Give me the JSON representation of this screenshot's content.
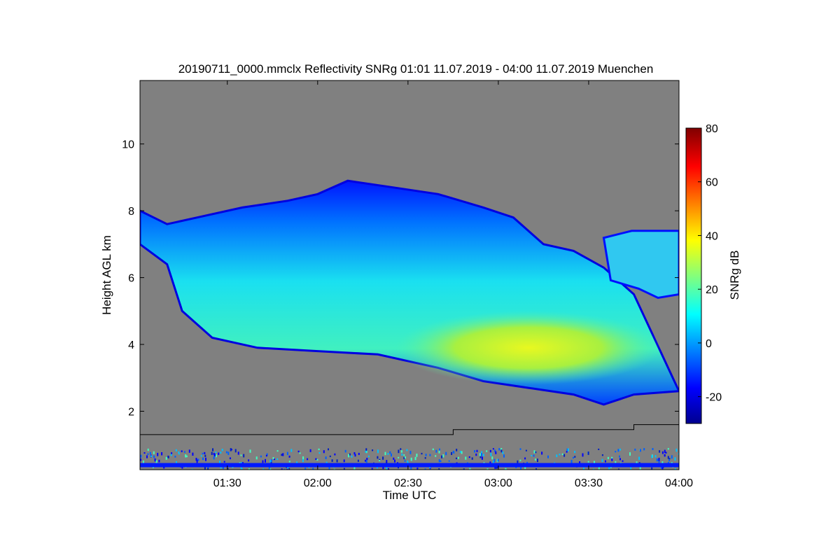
{
  "chart_data": {
    "type": "heatmap",
    "title": "20190711_0000.mmclx Reflectivity SNRg   01:01 11.07.2019 - 04:00 11.07.2019 Muenchen",
    "xlabel": "Time UTC",
    "ylabel": "Height AGL km",
    "colorbar_label": "SNRg dB",
    "x_range": [
      "01:01",
      "04:00"
    ],
    "x_ticks": [
      "01:30",
      "02:00",
      "02:30",
      "03:00",
      "03:30",
      "04:00"
    ],
    "ylim": [
      0.25,
      11.9
    ],
    "y_ticks": [
      2,
      4,
      6,
      8,
      10
    ],
    "colorbar_range": [
      -30,
      80
    ],
    "colorbar_ticks": [
      -20,
      0,
      20,
      40,
      60,
      80
    ],
    "colormap": "jet",
    "background_color": "#808080",
    "cloud": {
      "top_km": [
        [
          "01:01",
          8.0
        ],
        [
          "01:10",
          7.6
        ],
        [
          "01:20",
          7.8
        ],
        [
          "01:35",
          8.1
        ],
        [
          "01:50",
          8.3
        ],
        [
          "02:00",
          8.5
        ],
        [
          "02:10",
          8.9
        ],
        [
          "02:25",
          8.7
        ],
        [
          "02:40",
          8.5
        ],
        [
          "02:55",
          8.1
        ],
        [
          "03:05",
          7.8
        ],
        [
          "03:15",
          7.0
        ],
        [
          "03:25",
          6.8
        ],
        [
          "03:35",
          6.3
        ],
        [
          "03:45",
          5.5
        ]
      ],
      "base_km": [
        [
          "01:01",
          7.0
        ],
        [
          "01:10",
          6.4
        ],
        [
          "01:15",
          5.0
        ],
        [
          "01:25",
          4.2
        ],
        [
          "01:40",
          3.9
        ],
        [
          "02:00",
          3.8
        ],
        [
          "02:20",
          3.7
        ],
        [
          "02:40",
          3.3
        ],
        [
          "02:55",
          2.9
        ],
        [
          "03:10",
          2.7
        ],
        [
          "03:25",
          2.5
        ],
        [
          "03:35",
          2.2
        ],
        [
          "03:45",
          2.5
        ],
        [
          "04:00",
          2.6
        ]
      ],
      "core_snr_db": 40,
      "core_height_km": [
        3.0,
        4.8
      ],
      "core_time": [
        "02:35",
        "03:45"
      ]
    },
    "cloud_top_right": {
      "time": [
        "03:35",
        "04:00"
      ],
      "height_km": [
        5.5,
        7.4
      ]
    },
    "ceilometer_line_km": [
      [
        "01:01",
        1.3
      ],
      [
        "02:45",
        1.3
      ],
      [
        "02:45",
        1.45
      ],
      [
        "03:45",
        1.45
      ],
      [
        "03:45",
        1.6
      ],
      [
        "04:00",
        1.6
      ]
    ],
    "near_ground_clutter_km": [
      0.25,
      0.9
    ]
  }
}
